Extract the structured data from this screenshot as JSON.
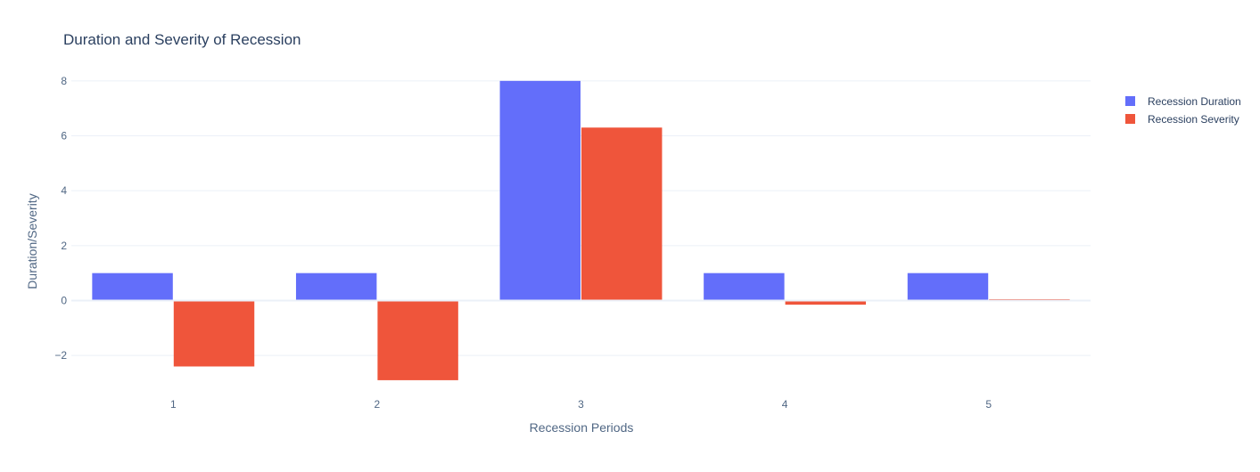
{
  "chart_data": {
    "type": "bar",
    "title": "Duration and Severity of Recession",
    "xlabel": "Recession Periods",
    "ylabel": "Duration/Severity",
    "categories": [
      "1",
      "2",
      "3",
      "4",
      "5"
    ],
    "series": [
      {
        "name": "Recession Duration",
        "values": [
          1,
          1,
          8,
          1,
          1
        ]
      },
      {
        "name": "Recession Severity",
        "values": [
          -2.4,
          -2.9,
          6.3,
          -0.15,
          0.05
        ]
      }
    ],
    "ylim": [
      -3.0,
      9.0
    ],
    "yticks": [
      -2,
      0,
      2,
      4,
      6,
      8
    ],
    "ytick_labels": [
      "−2",
      "0",
      "2",
      "4",
      "6",
      "8"
    ],
    "grid": true,
    "legend": "top-right",
    "colors": {
      "series": [
        "#636efa",
        "#ef553b"
      ],
      "grid": "#ebf0f8",
      "zeroline": "#ebf0f8",
      "text": "#2a3f5f",
      "axis_text": "#506784",
      "background": "#ffffff"
    }
  }
}
